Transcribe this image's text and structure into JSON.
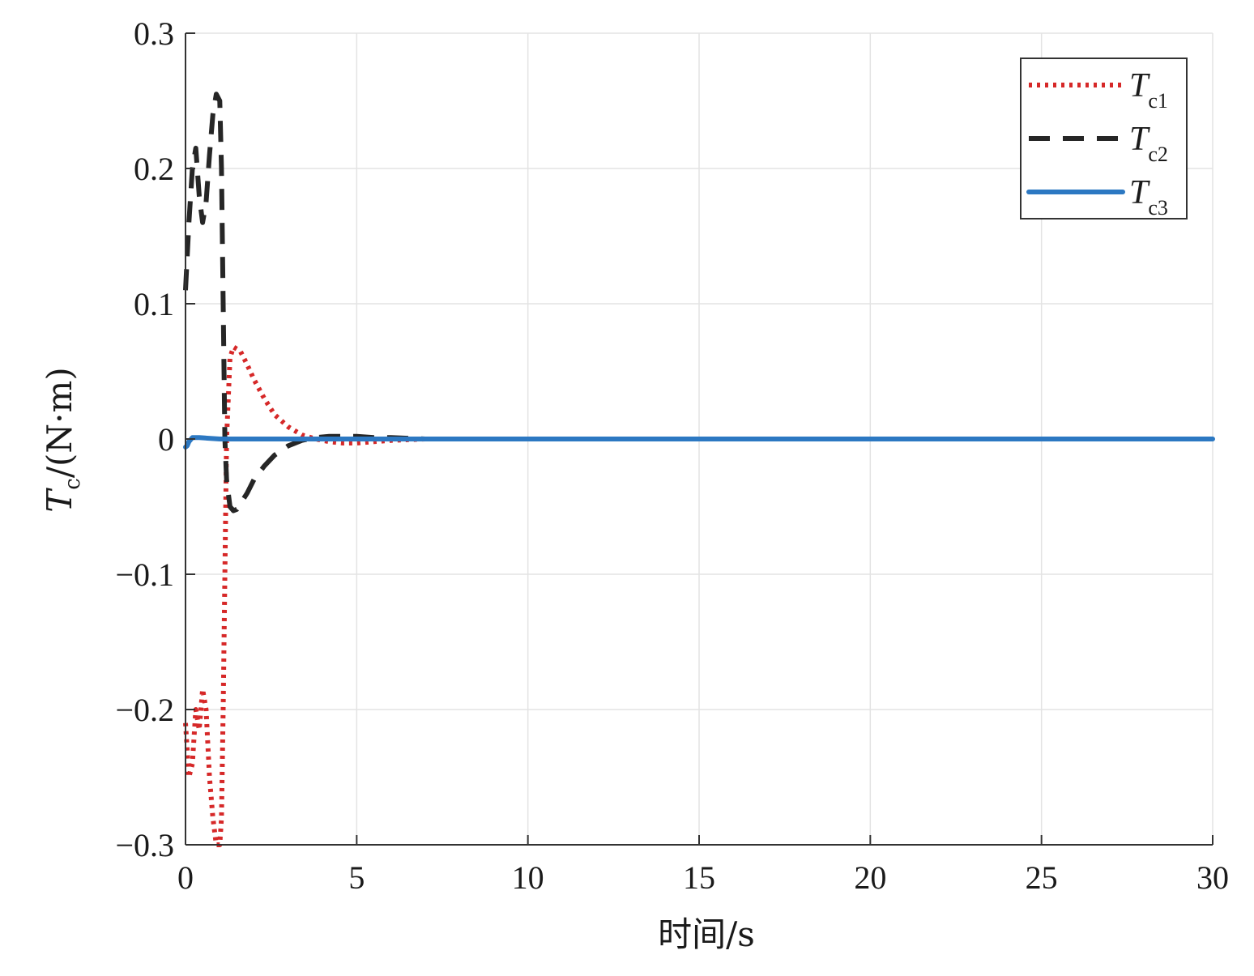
{
  "chart_data": {
    "type": "line",
    "xlabel": "时间/s",
    "ylabel": {
      "symbol": "T",
      "sub": "c",
      "unit": "/(N·m)"
    },
    "xlim": [
      0,
      30
    ],
    "ylim": [
      -0.3,
      0.3
    ],
    "xticks": [
      0,
      5,
      10,
      15,
      20,
      25,
      30
    ],
    "xtick_labels": [
      "0",
      "5",
      "10",
      "15",
      "20",
      "25",
      "30"
    ],
    "yticks": [
      -0.3,
      -0.2,
      -0.1,
      0,
      0.1,
      0.2,
      0.3
    ],
    "ytick_labels": [
      "−0.3",
      "−0.2",
      "−0.1",
      "0",
      "0.1",
      "0.2",
      "0.3"
    ],
    "grid": true,
    "legend_position": "top-right",
    "series": [
      {
        "name": "T",
        "sub": "c1",
        "color": "#d62828",
        "style": "dotted",
        "x": [
          0.0,
          0.1,
          0.2,
          0.3,
          0.4,
          0.5,
          0.6,
          0.7,
          0.8,
          0.9,
          1.0,
          1.05,
          1.1,
          1.15,
          1.2,
          1.3,
          1.4,
          1.6,
          1.8,
          2.0,
          2.3,
          2.6,
          3.0,
          3.4,
          3.8,
          4.2,
          4.6,
          5.0,
          5.5,
          6.0,
          7.0,
          8.0,
          9.0,
          10.0,
          30.0
        ],
        "y": [
          -0.21,
          -0.25,
          -0.24,
          -0.2,
          -0.215,
          -0.185,
          -0.2,
          -0.25,
          -0.28,
          -0.3,
          -0.3,
          -0.28,
          -0.2,
          -0.1,
          0.0,
          0.06,
          0.068,
          0.065,
          0.055,
          0.044,
          0.03,
          0.018,
          0.009,
          0.003,
          0.0,
          -0.002,
          -0.003,
          -0.003,
          -0.002,
          -0.001,
          0.0,
          0.0,
          0.0,
          0.0,
          0.0
        ]
      },
      {
        "name": "T",
        "sub": "c2",
        "color": "#262626",
        "style": "dashed",
        "x": [
          0.0,
          0.1,
          0.2,
          0.3,
          0.4,
          0.5,
          0.6,
          0.7,
          0.8,
          0.9,
          1.0,
          1.05,
          1.1,
          1.15,
          1.2,
          1.3,
          1.4,
          1.5,
          1.6,
          1.8,
          2.0,
          2.3,
          2.6,
          3.0,
          3.4,
          3.8,
          4.2,
          4.6,
          5.0,
          5.5,
          6.0,
          7.0,
          8.0,
          9.0,
          10.0,
          30.0
        ],
        "y": [
          0.11,
          0.16,
          0.2,
          0.215,
          0.18,
          0.16,
          0.175,
          0.21,
          0.24,
          0.255,
          0.25,
          0.2,
          0.1,
          0.0,
          -0.03,
          -0.05,
          -0.053,
          -0.052,
          -0.048,
          -0.04,
          -0.03,
          -0.02,
          -0.012,
          -0.005,
          -0.001,
          0.001,
          0.002,
          0.002,
          0.002,
          0.001,
          0.001,
          0.0,
          0.0,
          0.0,
          0.0,
          0.0
        ]
      },
      {
        "name": "T",
        "sub": "c3",
        "color": "#2c78c2",
        "style": "solid",
        "x": [
          0.0,
          0.05,
          0.1,
          0.2,
          0.4,
          1.0,
          30.0
        ],
        "y": [
          -0.006,
          -0.005,
          -0.002,
          0.001,
          0.001,
          0.0,
          0.0
        ]
      }
    ]
  }
}
